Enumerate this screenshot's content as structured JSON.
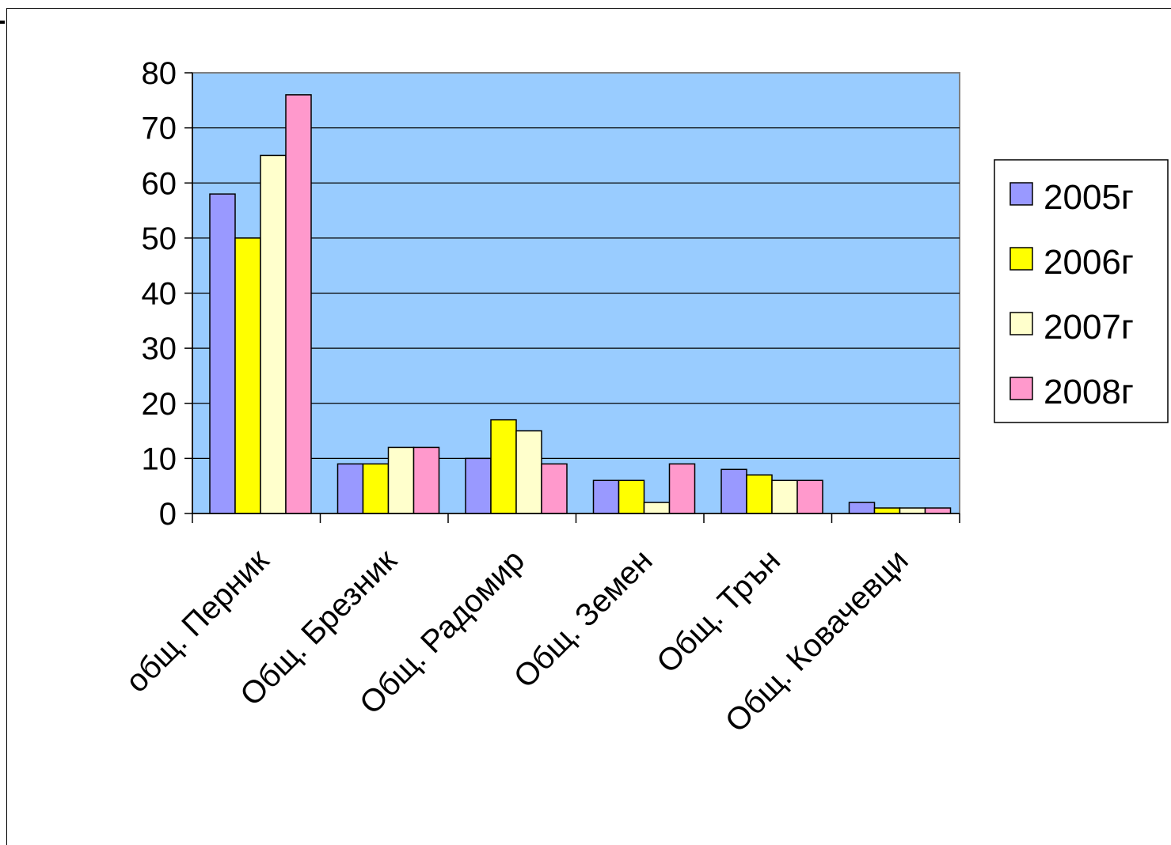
{
  "chart_data": {
    "type": "bar",
    "categories": [
      "общ. Перник",
      "Общ. Брезник",
      "Общ. Радомир",
      "Общ. Земен",
      "Общ. Трън",
      "Общ. Ковачевци"
    ],
    "series": [
      {
        "name": "2005г",
        "color": "#9999FF",
        "values": [
          58,
          9,
          10,
          6,
          8,
          2
        ]
      },
      {
        "name": "2006г",
        "color": "#FFFF00",
        "values": [
          50,
          9,
          17,
          6,
          7,
          1
        ]
      },
      {
        "name": "2007г",
        "color": "#FFFFCC",
        "values": [
          65,
          12,
          15,
          2,
          6,
          1
        ]
      },
      {
        "name": "2008г",
        "color": "#FF99CC",
        "values": [
          76,
          12,
          9,
          9,
          6,
          1
        ]
      }
    ],
    "yticks": [
      "0",
      "10",
      "20",
      "30",
      "40",
      "50",
      "60",
      "70",
      "80"
    ],
    "ylim": [
      0,
      80
    ],
    "grid": true,
    "legend_position": "right",
    "plot_background": "#99CCFF"
  }
}
